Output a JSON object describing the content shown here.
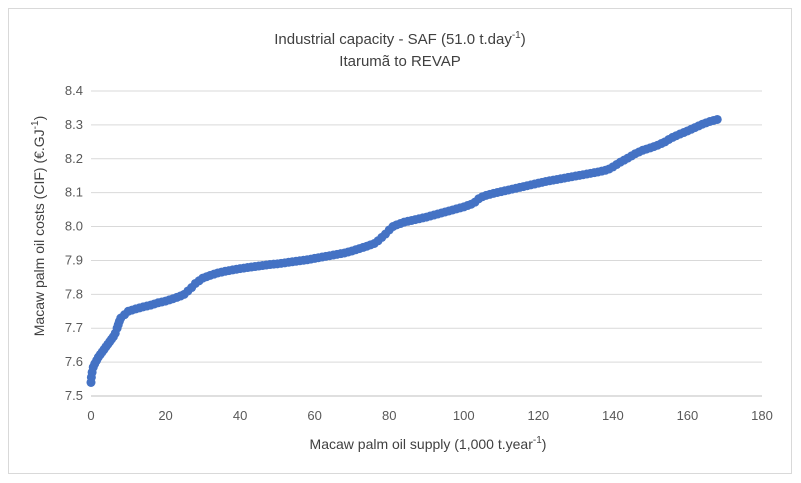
{
  "chart_data": {
    "type": "scatter",
    "title": {
      "line1_main": "Industrial capacity - SAF (51.0 t.day",
      "line1_sup": "-1",
      "line1_end": ")",
      "line2": "Itarumã to REVAP"
    },
    "xlabel": {
      "main": "Macaw palm oil supply (1,000 t.year",
      "sup": "-1",
      "end": ")"
    },
    "ylabel": {
      "main": "Macaw palm oil costs (CIF) (€.GJ",
      "sup": "-1",
      "end": ")"
    },
    "xlim": [
      0,
      180
    ],
    "ylim": [
      7.5,
      8.4
    ],
    "x_ticks": [
      "0",
      "20",
      "40",
      "60",
      "80",
      "100",
      "120",
      "140",
      "160",
      "180"
    ],
    "y_ticks": [
      "7.5",
      "7.6",
      "7.7",
      "7.8",
      "7.9",
      "8.0",
      "8.1",
      "8.2",
      "8.3",
      "8.4"
    ],
    "grid": "horizontal",
    "legend": "none",
    "marker_color": "#4472C4",
    "series": [
      {
        "x": [
          0,
          0.1,
          0.3,
          0.6,
          1,
          1.5,
          2,
          3,
          4,
          5,
          6,
          6.5,
          7,
          7.3,
          7.6,
          8,
          9,
          10,
          12,
          14,
          16,
          18,
          20,
          22,
          24,
          25,
          26,
          27,
          28,
          29,
          30,
          32,
          34,
          36,
          38,
          40,
          42,
          44,
          46,
          48,
          50,
          52,
          54,
          56,
          58,
          60,
          62,
          64,
          66,
          68,
          70,
          72,
          74,
          76,
          77,
          78,
          79,
          80,
          81,
          82,
          84,
          86,
          88,
          90,
          92,
          94,
          96,
          98,
          100,
          102,
          103,
          104,
          105,
          106,
          108,
          110,
          112,
          114,
          116,
          118,
          120,
          122,
          124,
          126,
          128,
          130,
          132,
          134,
          136,
          138,
          139,
          140,
          142,
          144,
          146,
          148,
          150,
          152,
          154,
          155,
          156,
          157,
          158,
          160,
          162,
          164,
          166,
          168
        ],
        "y": [
          7.54,
          7.555,
          7.57,
          7.585,
          7.595,
          7.605,
          7.615,
          7.63,
          7.645,
          7.66,
          7.675,
          7.685,
          7.7,
          7.71,
          7.72,
          7.73,
          7.74,
          7.75,
          7.757,
          7.763,
          7.768,
          7.775,
          7.78,
          7.787,
          7.795,
          7.8,
          7.81,
          7.82,
          7.832,
          7.84,
          7.848,
          7.856,
          7.863,
          7.868,
          7.872,
          7.876,
          7.879,
          7.882,
          7.885,
          7.888,
          7.89,
          7.893,
          7.896,
          7.899,
          7.902,
          7.906,
          7.91,
          7.914,
          7.918,
          7.922,
          7.928,
          7.935,
          7.942,
          7.95,
          7.958,
          7.968,
          7.978,
          7.99,
          8.0,
          8.005,
          8.013,
          8.018,
          8.023,
          8.028,
          8.034,
          8.04,
          8.046,
          8.052,
          8.058,
          8.066,
          8.072,
          8.082,
          8.088,
          8.092,
          8.098,
          8.103,
          8.108,
          8.113,
          8.118,
          8.123,
          8.128,
          8.133,
          8.137,
          8.141,
          8.145,
          8.149,
          8.153,
          8.157,
          8.161,
          8.166,
          8.17,
          8.176,
          8.19,
          8.202,
          8.215,
          8.225,
          8.232,
          8.24,
          8.25,
          8.257,
          8.263,
          8.268,
          8.273,
          8.282,
          8.292,
          8.302,
          8.31,
          8.316
        ]
      }
    ]
  }
}
